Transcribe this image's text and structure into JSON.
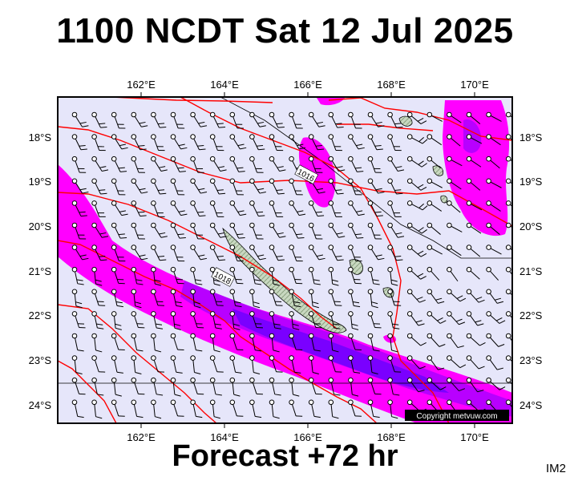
{
  "title": "1100 NCDT Sat 12 Jul 2025",
  "subtitle": "Forecast +72 hr",
  "corner_label": "IM2",
  "copyright": "Copyright metvuw.com",
  "colors": {
    "ocean": "#e6e6fa",
    "land": "#c8d8c0",
    "isobar": "#ff0000",
    "rain_light": "#ff00ff",
    "rain_medium": "#b800ff",
    "rain_heavy": "#7a00ff",
    "frame": "#000000"
  },
  "map": {
    "lon_range": [
      160.0,
      171.0
    ],
    "lat_range": [
      -24.35,
      -17.15
    ],
    "lon_ticks": [
      "162°E",
      "164°E",
      "166°E",
      "168°E",
      "170°E"
    ],
    "lat_ticks": [
      "18°S",
      "19°S",
      "20°S",
      "21°S",
      "22°S",
      "23°S",
      "24°S"
    ],
    "isobar_labels": [
      {
        "text": "1016",
        "lon": 166.1,
        "lat": -18.8
      },
      {
        "text": "1018",
        "lon": 164.0,
        "lat": -21.2
      }
    ]
  }
}
